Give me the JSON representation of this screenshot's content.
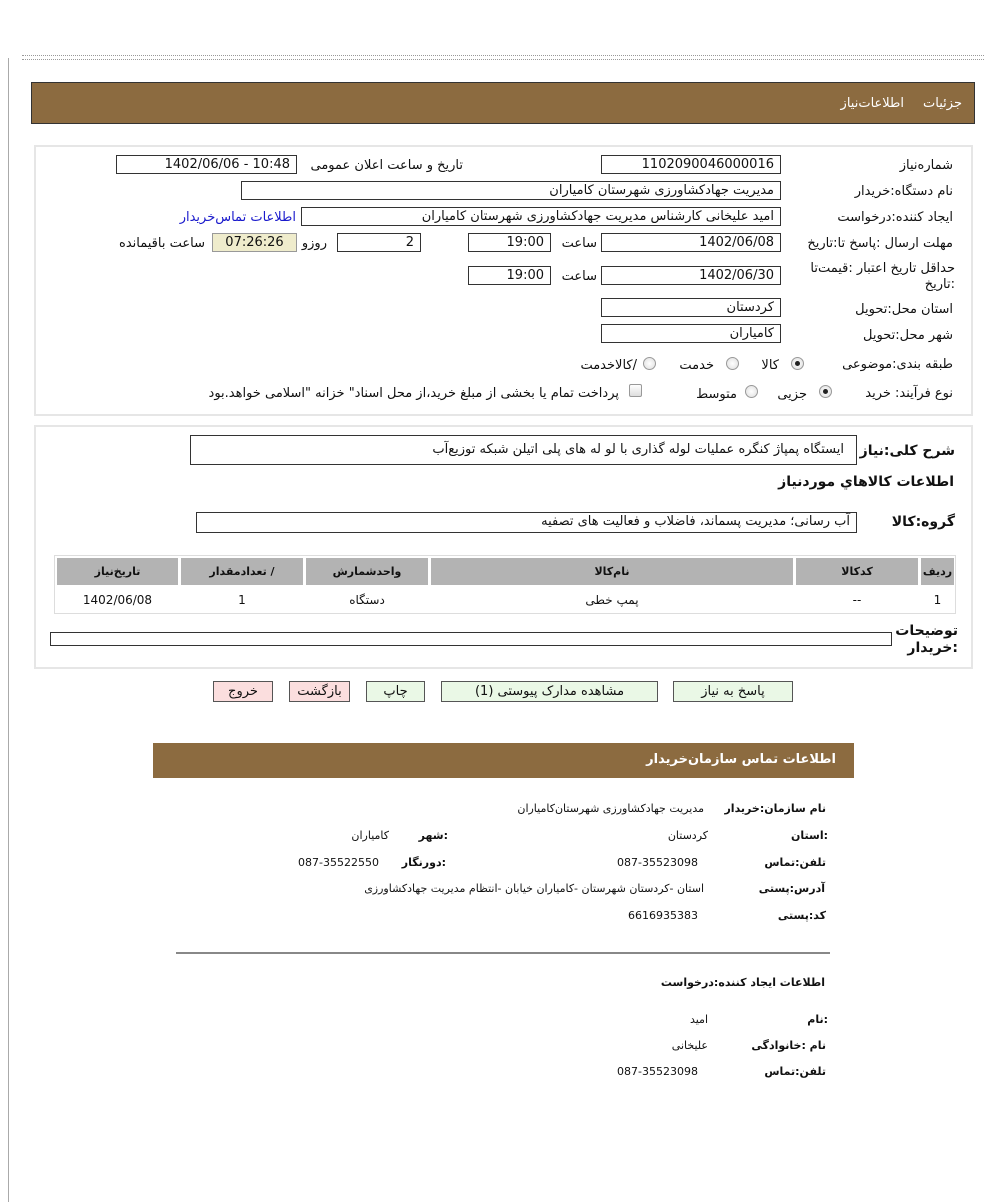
{
  "tabs": {
    "details": "جزئیات",
    "info": "اطلاعات‌نیاز"
  },
  "form": {
    "need_number_label": "شماره‌نیاز",
    "need_number": "1102090046000016",
    "announce_label": "تاریخ و ساعت اعلان عمومی",
    "announce_value": "1402/06/06 - 10:48",
    "buyer_label": "نام دستگاه:خریدار",
    "buyer_value": "مدیریت جهادکشاورزی شهرستان کامیاران",
    "creator_label": "ایجاد کننده:درخواست",
    "creator_value": "امید علیخانی کارشناس مدیریت جهادکشاورزی شهرستان کامیاران",
    "contact_link": "اطلاعات تماس‌خریدار",
    "deadline_label": "مهلت ارسال :پاسخ تا:تاریخ",
    "deadline_date": "1402/06/08",
    "hour_label": "ساعت",
    "deadline_time": "19:00",
    "days": "2",
    "days_label": "روزو",
    "remaining": "07:26:26",
    "remaining_label": "ساعت باقیمانده",
    "validity_label": "حداقل تاریخ اعتبار :قیمت‌تا :تاریخ",
    "validity_date": "1402/06/30",
    "validity_time": "19:00",
    "province_label": "استان محل:تحویل",
    "province": "کردستان",
    "city_label": "شهر محل:تحویل",
    "city": "کامیاران",
    "category_label": "طبقه بندی:موضوعی",
    "category_options": [
      "کالا",
      "خدمت",
      "/کالاخدمت"
    ],
    "category_selected": "کالا",
    "process_label": "نوع فرآیند: خرید",
    "process_options": [
      "جزیی",
      "متوسط"
    ],
    "process_selected": "جزیی",
    "payment_note": "پرداخت تمام یا بخشی از مبلغ خرید،از محل اسناد\" خزانه \"اسلامی خواهد.بود",
    "payment_checked": false
  },
  "summary": {
    "label": "شرح کلی:نیاز",
    "value": "ایستگاه پمپاژ کنگره عملیات لوله گذاری با لو له های پلی  اتیلن  شبکه توزیع‌آب",
    "goods_heading": "اطلاعات کالاهاي موردنیاز",
    "group_label": "گروه:کالا",
    "group_value": "آب رسانی؛ مدیریت پسماند، فاضلاب و فعالیت های تصفیه"
  },
  "table": {
    "headers": [
      "ردیف",
      "کدکالا",
      "نام‌کالا",
      "واحدشمارش",
      "/ تعدادمقدار",
      "تاریخ‌نیاز"
    ],
    "rows": [
      [
        "1",
        "--",
        "پمپ خطی",
        "دستگاه",
        "1",
        "1402/06/08"
      ]
    ]
  },
  "notes_label": "توضیحات :خریدار",
  "notes_value": "",
  "buttons": {
    "reply": "پاسخ به نیاز",
    "docs": "مشاهده مدارک پیوستی (1)",
    "print": "چاپ",
    "back": "بازگشت",
    "exit": "خروج"
  },
  "contact": {
    "title": "اطلاعات  تماس سازمان‌خریدار",
    "org_label": "نام سازمان:خریدار",
    "org": "مدیریت جهادکشاورزی شهرستان‌کامیاران",
    "province_label": ":استان",
    "province": "کردستان",
    "city_label": ":شهر",
    "city": "کامیاران",
    "phone_label": "تلفن:تماس",
    "phone": "087-35523098",
    "fax_label": ":دورنگار",
    "fax": "087-35522550",
    "address_label": "آدرس:پستی",
    "address": "استان -کردستان شهرستان -کامیاران خیابان -انتظام مدیریت جهادکشاورزی",
    "postal_label": "کد:پستی",
    "postal": "6616935383",
    "creator_heading": "اطلاعات  ایجاد کننده:درخواست",
    "name_label": ":نام",
    "name": "امید",
    "family_label": "نام :خانوادگی",
    "family": "علیخانی",
    "creator_phone_label": "تلفن:تماس",
    "creator_phone": "087-35523098"
  }
}
